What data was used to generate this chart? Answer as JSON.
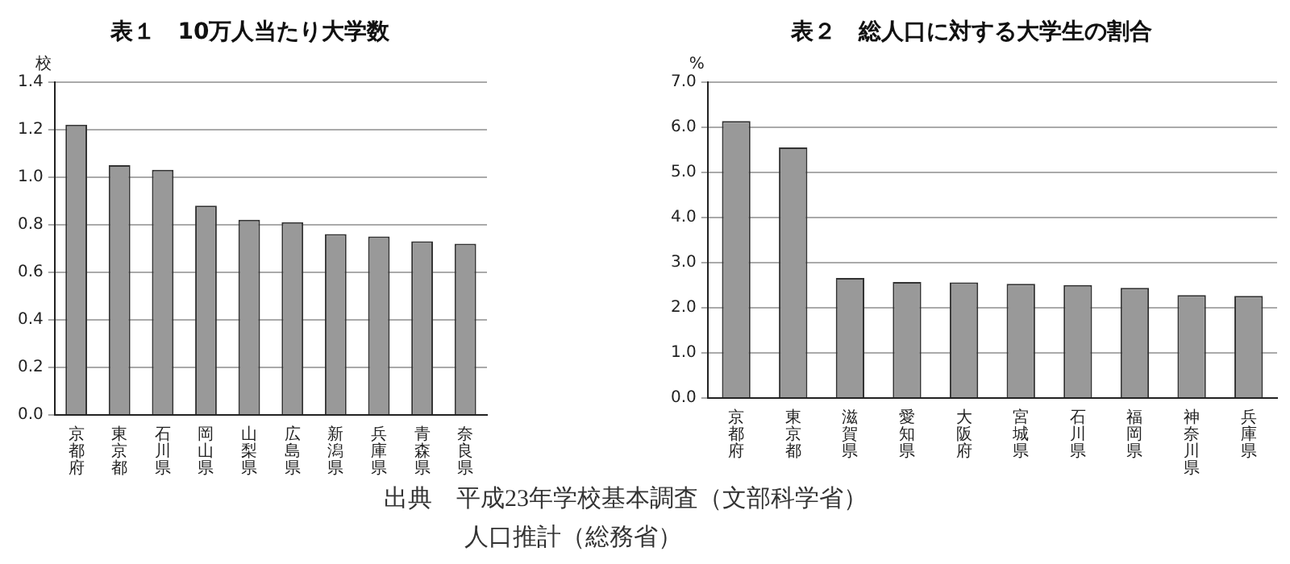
{
  "chart_data": [
    {
      "type": "bar",
      "title": "表１　10万人当たり大学数",
      "ylabel": "校",
      "categories": [
        "京都府",
        "東京都",
        "石川県",
        "岡山県",
        "山梨県",
        "広島県",
        "新潟県",
        "兵庫県",
        "青森県",
        "奈良県"
      ],
      "series": [
        {
          "color": "#999999",
          "values": [
            1.22,
            1.05,
            1.03,
            0.88,
            0.82,
            0.81,
            0.76,
            0.75,
            0.73,
            0.72
          ]
        }
      ],
      "ylim": [
        0,
        1.4
      ],
      "yticks": [
        {
          "value": 0,
          "label": "0.0"
        },
        {
          "value": 0.2,
          "label": "0.2"
        },
        {
          "value": 0.4,
          "label": "0.4"
        },
        {
          "value": 0.6,
          "label": "0.6"
        },
        {
          "value": 0.8,
          "label": "0.8"
        },
        {
          "value": 1,
          "label": "1.0"
        },
        {
          "value": 1.2,
          "label": "1.2"
        },
        {
          "value": 1.4,
          "label": "1.4"
        }
      ],
      "grid": "y",
      "legend": false,
      "annotations": [
        "出典　平成23年学校基本調査（文部科学省）",
        "人口推計（総務省）"
      ]
    },
    {
      "type": "bar",
      "title": "表２　総人口に対する大学生の割合",
      "ylabel": "%",
      "categories": [
        "京都府",
        "東京都",
        "滋賀県",
        "愛知県",
        "大阪府",
        "宮城県",
        "石川県",
        "福岡県",
        "神奈川県",
        "兵庫県"
      ],
      "series": [
        {
          "color": "#999999",
          "values": [
            6.13,
            5.55,
            2.66,
            2.57,
            2.56,
            2.53,
            2.5,
            2.44,
            2.28,
            2.26
          ]
        }
      ],
      "ylim": [
        0,
        7
      ],
      "yticks": [
        {
          "value": 0,
          "label": "0.0"
        },
        {
          "value": 1,
          "label": "1.0"
        },
        {
          "value": 2,
          "label": "2.0"
        },
        {
          "value": 3,
          "label": "3.0"
        },
        {
          "value": 4,
          "label": "4.0"
        },
        {
          "value": 5,
          "label": "5.0"
        },
        {
          "value": 6,
          "label": "6.0"
        },
        {
          "value": 7,
          "label": "7.0"
        }
      ],
      "grid": "y",
      "legend": false
    }
  ]
}
